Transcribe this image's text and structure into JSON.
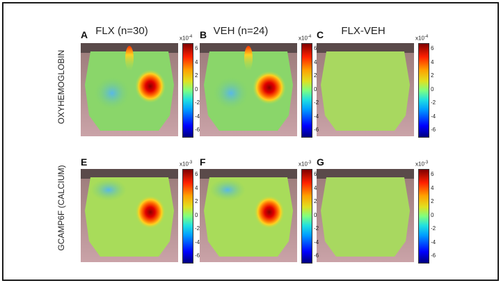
{
  "columns": [
    {
      "title": "FLX (n=30)",
      "letters": [
        "A",
        "E"
      ]
    },
    {
      "title": "VEH (n=24)",
      "letters": [
        "B",
        "F"
      ]
    },
    {
      "title": "FLX-VEH",
      "letters": [
        "C",
        "G"
      ]
    }
  ],
  "rows": [
    {
      "label": "OXYHEMOGLOBIN",
      "exp_base": "x10",
      "exp_power": "-4"
    },
    {
      "label": "GCAMP6F (CALCIUM)",
      "exp_base": "x10",
      "exp_power": "-3"
    }
  ],
  "colorbar_ticks": [
    "6",
    "4",
    "2",
    "0",
    "-2",
    "-4",
    "-6"
  ],
  "colors": {
    "hot": "#cc0000",
    "background": "#7fd46a",
    "cool": "#6fc8e0"
  }
}
